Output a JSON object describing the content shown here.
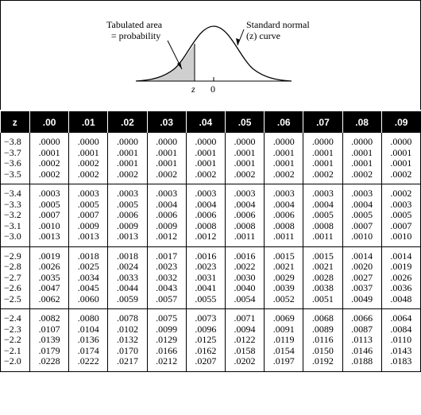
{
  "figure": {
    "tabulated_label_line1": "Tabulated area",
    "tabulated_label_line2": "= probability",
    "curve_label_line1": "Standard normal",
    "curve_label_line2": "(z) curve",
    "z_marker": "z",
    "zero_marker": "0"
  },
  "table": {
    "headers": [
      "z",
      ".00",
      ".01",
      ".02",
      ".03",
      ".04",
      ".05",
      ".06",
      ".07",
      ".08",
      ".09"
    ],
    "blocks": [
      {
        "z": [
          "−3.8",
          "−3.7",
          "−3.6",
          "−3.5"
        ],
        "cols": [
          [
            ".0000",
            ".0001",
            ".0002",
            ".0002"
          ],
          [
            ".0000",
            ".0001",
            ".0002",
            ".0002"
          ],
          [
            ".0000",
            ".0001",
            ".0001",
            ".0002"
          ],
          [
            ".0000",
            ".0001",
            ".0001",
            ".0002"
          ],
          [
            ".0000",
            ".0001",
            ".0001",
            ".0002"
          ],
          [
            ".0000",
            ".0001",
            ".0001",
            ".0002"
          ],
          [
            ".0000",
            ".0001",
            ".0001",
            ".0002"
          ],
          [
            ".0000",
            ".0001",
            ".0001",
            ".0002"
          ],
          [
            ".0000",
            ".0001",
            ".0001",
            ".0002"
          ],
          [
            ".0000",
            ".0001",
            ".0001",
            ".0002"
          ]
        ]
      },
      {
        "z": [
          "−3.4",
          "−3.3",
          "−3.2",
          "−3.1",
          "−3.0"
        ],
        "cols": [
          [
            ".0003",
            ".0005",
            ".0007",
            ".0010",
            ".0013"
          ],
          [
            ".0003",
            ".0005",
            ".0007",
            ".0009",
            ".0013"
          ],
          [
            ".0003",
            ".0005",
            ".0006",
            ".0009",
            ".0013"
          ],
          [
            ".0003",
            ".0004",
            ".0006",
            ".0009",
            ".0012"
          ],
          [
            ".0003",
            ".0004",
            ".0006",
            ".0008",
            ".0012"
          ],
          [
            ".0003",
            ".0004",
            ".0006",
            ".0008",
            ".0011"
          ],
          [
            ".0003",
            ".0004",
            ".0006",
            ".0008",
            ".0011"
          ],
          [
            ".0003",
            ".0004",
            ".0005",
            ".0008",
            ".0011"
          ],
          [
            ".0003",
            ".0004",
            ".0005",
            ".0007",
            ".0010"
          ],
          [
            ".0002",
            ".0003",
            ".0005",
            ".0007",
            ".0010"
          ]
        ]
      },
      {
        "z": [
          "−2.9",
          "−2.8",
          "−2.7",
          "−2.6",
          "−2.5"
        ],
        "cols": [
          [
            ".0019",
            ".0026",
            ".0035",
            ".0047",
            ".0062"
          ],
          [
            ".0018",
            ".0025",
            ".0034",
            ".0045",
            ".0060"
          ],
          [
            ".0018",
            ".0024",
            ".0033",
            ".0044",
            ".0059"
          ],
          [
            ".0017",
            ".0023",
            ".0032",
            ".0043",
            ".0057"
          ],
          [
            ".0016",
            ".0023",
            ".0031",
            ".0041",
            ".0055"
          ],
          [
            ".0016",
            ".0022",
            ".0030",
            ".0040",
            ".0054"
          ],
          [
            ".0015",
            ".0021",
            ".0029",
            ".0039",
            ".0052"
          ],
          [
            ".0015",
            ".0021",
            ".0028",
            ".0038",
            ".0051"
          ],
          [
            ".0014",
            ".0020",
            ".0027",
            ".0037",
            ".0049"
          ],
          [
            ".0014",
            ".0019",
            ".0026",
            ".0036",
            ".0048"
          ]
        ]
      },
      {
        "z": [
          "−2.4",
          "−2.3",
          "−2.2",
          "−2.1",
          "−2.0"
        ],
        "cols": [
          [
            ".0082",
            ".0107",
            ".0139",
            ".0179",
            ".0228"
          ],
          [
            ".0080",
            ".0104",
            ".0136",
            ".0174",
            ".0222"
          ],
          [
            ".0078",
            ".0102",
            ".0132",
            ".0170",
            ".0217"
          ],
          [
            ".0075",
            ".0099",
            ".0129",
            ".0166",
            ".0212"
          ],
          [
            ".0073",
            ".0096",
            ".0125",
            ".0162",
            ".0207"
          ],
          [
            ".0071",
            ".0094",
            ".0122",
            ".0158",
            ".0202"
          ],
          [
            ".0069",
            ".0091",
            ".0119",
            ".0154",
            ".0197"
          ],
          [
            ".0068",
            ".0089",
            ".0116",
            ".0150",
            ".0192"
          ],
          [
            ".0066",
            ".0087",
            ".0113",
            ".0146",
            ".0188"
          ],
          [
            ".0064",
            ".0084",
            ".0110",
            ".0143",
            ".0183"
          ]
        ]
      }
    ]
  }
}
